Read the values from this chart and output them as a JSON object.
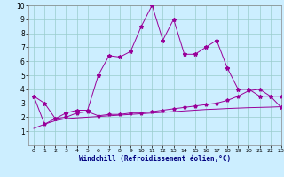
{
  "xlabel": "Windchill (Refroidissement éolien,°C)",
  "x_main": [
    0,
    1,
    2,
    3,
    4,
    5,
    6,
    7,
    8,
    9,
    10,
    11,
    12,
    13,
    14,
    15,
    16,
    17,
    18,
    19,
    20,
    21,
    22,
    23
  ],
  "y_main": [
    3.5,
    3.0,
    1.9,
    2.3,
    2.5,
    2.5,
    5.0,
    6.4,
    6.3,
    6.7,
    8.5,
    10.0,
    7.5,
    9.0,
    6.5,
    6.5,
    7.0,
    7.5,
    5.5,
    4.0,
    4.0,
    3.5,
    3.5,
    2.7
  ],
  "y_mid": [
    3.5,
    1.5,
    1.9,
    2.0,
    2.3,
    2.4,
    2.1,
    2.2,
    2.2,
    2.3,
    2.3,
    2.4,
    2.5,
    2.6,
    2.7,
    2.8,
    2.9,
    3.0,
    3.2,
    3.5,
    3.9,
    4.0,
    3.5,
    3.5
  ],
  "y_low": [
    1.2,
    1.5,
    1.75,
    1.9,
    1.95,
    2.0,
    2.05,
    2.1,
    2.15,
    2.2,
    2.25,
    2.3,
    2.35,
    2.4,
    2.45,
    2.5,
    2.55,
    2.58,
    2.62,
    2.65,
    2.68,
    2.7,
    2.72,
    2.75
  ],
  "bg_color": "#cceeff",
  "line_color": "#990099",
  "grid_color": "#99cccc",
  "xlim": [
    -0.5,
    23
  ],
  "ylim": [
    0,
    10
  ],
  "yticks": [
    1,
    2,
    3,
    4,
    5,
    6,
    7,
    8,
    9,
    10
  ],
  "xticks": [
    0,
    1,
    2,
    3,
    4,
    5,
    6,
    7,
    8,
    9,
    10,
    11,
    12,
    13,
    14,
    15,
    16,
    17,
    18,
    19,
    20,
    21,
    22,
    23
  ]
}
